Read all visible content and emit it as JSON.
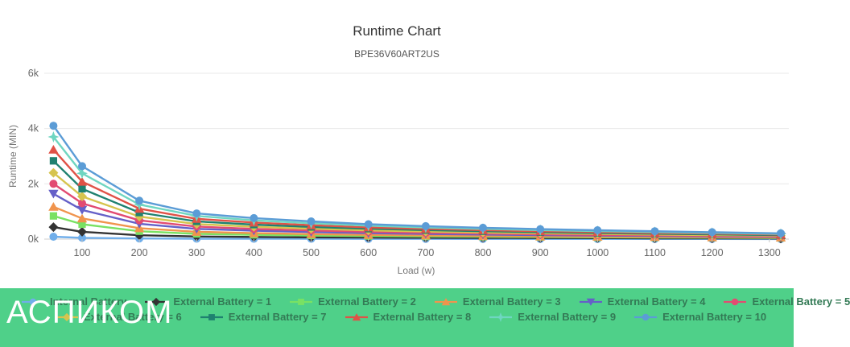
{
  "header": {
    "title": "Runtime Chart",
    "subtitle": "BPE36V60ART2US"
  },
  "watermark": {
    "text": "АСПИКОМ"
  },
  "colors": {
    "legend_background": "#4fd089",
    "legend_text": "#337a55",
    "grid_line": "#e8e8e8",
    "axis_line": "#cfcfcf",
    "tick_text": "#666666",
    "title_text": "#333333",
    "subtitle_text": "#555555"
  },
  "chart_data": {
    "type": "line",
    "title": "Runtime Chart",
    "subtitle": "BPE36V60ART2US",
    "xlabel": "Load (w)",
    "ylabel": "Runtime (MIN)",
    "ylim": [
      0,
      6000
    ],
    "grid": "horizontal-only",
    "legend_position": "bottom",
    "x": [
      50,
      100,
      200,
      300,
      400,
      500,
      600,
      700,
      800,
      900,
      1000,
      1100,
      1200,
      1320
    ],
    "x_ticks": [
      100,
      200,
      300,
      400,
      500,
      600,
      700,
      800,
      900,
      1000,
      1100,
      1200,
      1300
    ],
    "y_ticks": [
      {
        "value": 0,
        "label": "0k"
      },
      {
        "value": 2000,
        "label": "2k"
      },
      {
        "value": 4000,
        "label": "4k"
      },
      {
        "value": 6000,
        "label": "6k"
      }
    ],
    "series": [
      {
        "name": "Internal Battery",
        "color": "#70aeea",
        "marker": "circle",
        "values": [
          87,
          46,
          24,
          16,
          13,
          11,
          9,
          8,
          7,
          6,
          6,
          5,
          5,
          4
        ]
      },
      {
        "name": "External Battery = 1",
        "color": "#333333",
        "marker": "diamond",
        "values": [
          435,
          265,
          140,
          95,
          78,
          65,
          56,
          49,
          43,
          38,
          34,
          30,
          26,
          22
        ]
      },
      {
        "name": "External Battery = 2",
        "color": "#79e163",
        "marker": "square",
        "values": [
          840,
          540,
          285,
          190,
          155,
          130,
          110,
          95,
          85,
          75,
          65,
          58,
          51,
          43
        ]
      },
      {
        "name": "External Battery = 3",
        "color": "#f0944d",
        "marker": "triangle",
        "values": [
          1170,
          750,
          395,
          265,
          215,
          180,
          155,
          135,
          115,
          100,
          90,
          80,
          70,
          60
        ]
      },
      {
        "name": "External Battery = 4",
        "color": "#6560c8",
        "marker": "triangle-down",
        "values": [
          1640,
          1055,
          555,
          370,
          305,
          255,
          215,
          190,
          165,
          145,
          130,
          115,
          100,
          85
        ]
      },
      {
        "name": "External Battery = 5",
        "color": "#e24b72",
        "marker": "circle",
        "values": [
          2000,
          1295,
          680,
          455,
          370,
          315,
          265,
          230,
          200,
          175,
          155,
          140,
          120,
          105
        ]
      },
      {
        "name": "External Battery = 6",
        "color": "#d6c44e",
        "marker": "diamond",
        "values": [
          2400,
          1545,
          815,
          545,
          445,
          375,
          315,
          275,
          240,
          210,
          185,
          165,
          145,
          125
        ]
      },
      {
        "name": "External Battery = 7",
        "color": "#1f8170",
        "marker": "square",
        "values": [
          2830,
          1820,
          960,
          640,
          525,
          440,
          375,
          325,
          285,
          250,
          220,
          195,
          175,
          145
        ]
      },
      {
        "name": "External Battery = 8",
        "color": "#e05247",
        "marker": "triangle",
        "values": [
          3240,
          2080,
          1100,
          735,
          600,
          505,
          425,
          370,
          325,
          285,
          255,
          225,
          200,
          165
        ]
      },
      {
        "name": "External Battery = 9",
        "color": "#6fd6c1",
        "marker": "star",
        "values": [
          3700,
          2380,
          1250,
          840,
          680,
          575,
          485,
          420,
          370,
          325,
          290,
          255,
          225,
          190
        ]
      },
      {
        "name": "External Battery = 10",
        "color": "#5b9cd6",
        "marker": "circle",
        "values": [
          4100,
          2640,
          1390,
          930,
          760,
          640,
          540,
          470,
          410,
          360,
          320,
          285,
          250,
          210
        ]
      }
    ]
  }
}
